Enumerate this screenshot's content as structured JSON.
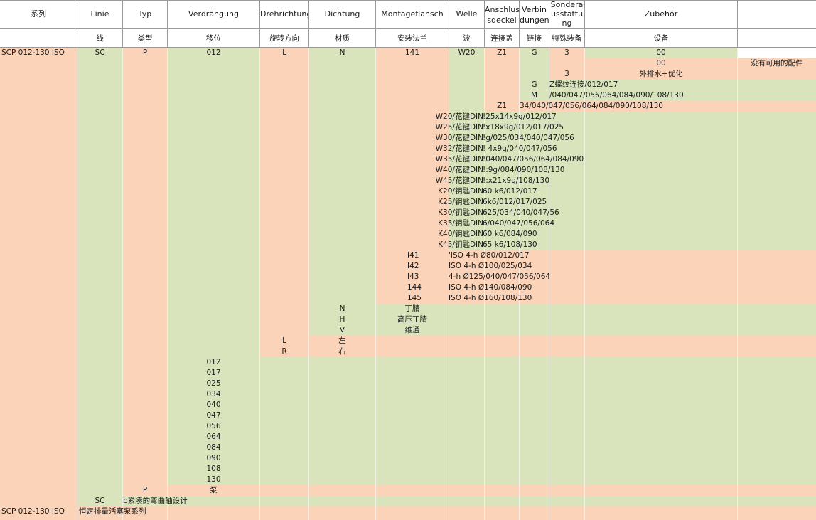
{
  "colors": {
    "salmon": "#fbd3b8",
    "green": "#d9e4bc",
    "white": "#ffffff",
    "grid": "#9a9a9a"
  },
  "header": {
    "row1": [
      "系列",
      "Linie",
      "Typ",
      "Verdrängung",
      "Drehrichtung",
      "Dichtung",
      "Montageflansch",
      "Welle",
      "Anschlus sdeckel",
      "Verbin dungen",
      "Sondera usstattu ng",
      "Zubehör",
      ""
    ],
    "row2": [
      "",
      "线",
      "类型",
      "移位",
      "旋转方向",
      "材质",
      "安装法兰",
      "波",
      "连接盖",
      "链接",
      "特殊装备",
      "设备",
      ""
    ]
  },
  "rows": {
    "main": {
      "series": "SCP 012-130 ISO",
      "linie": "SC",
      "typ": "P",
      "verdraengung": "012",
      "drehrichtung": "L",
      "dichtung": "N",
      "flansch": "141",
      "welle": "W20",
      "anschluss": "Z1",
      "verbindung": "G",
      "sonder": "3",
      "zubehoer": "00"
    },
    "zubehoer_opts": [
      {
        "code": "00",
        "desc": "没有可用的配件"
      }
    ],
    "sonder_opts": [
      {
        "code": "3",
        "desc": "外排水+优化"
      }
    ],
    "verbindung_opts": [
      {
        "code": "G",
        "desc": "Z螺纹连接/012/017"
      },
      {
        "code": "M",
        "desc": "/040/047/056/064/084/090/108/130"
      }
    ],
    "anschluss_opts": [
      {
        "code": "Z1",
        "desc": "34/040/047/056/064/084/090/108/130"
      }
    ],
    "welle_opts": [
      {
        "code": "W20/花键DIN",
        "desc": "!25x14x9g/012/017"
      },
      {
        "code": "W25/花键DIN",
        "desc": "!x18x9g/012/017/025"
      },
      {
        "code": "W30/花键DIN",
        "desc": "!g/025/034/040/047/056"
      },
      {
        "code": "W32/花键DIN",
        "desc": "! 4x9g/040/047/056"
      },
      {
        "code": "W35/花键DIN",
        "desc": "!040/047/056/064/084/090"
      },
      {
        "code": "W40/花键DIN",
        "desc": "!:9g/084/090/108/130"
      },
      {
        "code": "W45/花键DIN",
        "desc": "!:x21x9g/108/130"
      },
      {
        "code": "K20/钥匙DIN",
        "desc": "60 k6/012/017"
      },
      {
        "code": "K25/钥匙DIN",
        "desc": "6k6/012/017/025"
      },
      {
        "code": "K30/钥匙DIN",
        "desc": "625/034/040/047/56"
      },
      {
        "code": "K35/钥匙DIN",
        "desc": "6/040/047/056/064"
      },
      {
        "code": "K40/钥匙DIN",
        "desc": "60 k6/084/090"
      },
      {
        "code": "K45/钥匙DIN",
        "desc": "65 k6/108/130"
      }
    ],
    "flansch_opts": [
      {
        "code": "I41",
        "desc": "'ISO 4-h Ø80/012/017"
      },
      {
        "code": "I42",
        "desc": "ISO 4-h Ø100/025/034"
      },
      {
        "code": "I43",
        "desc": "4-h Ø125/040/047/056/064"
      },
      {
        "code": "144",
        "desc": "ISO 4-h Ø140/084/090"
      },
      {
        "code": "145",
        "desc": "ISO 4-h Ø160/108/130"
      }
    ],
    "dichtung_opts": [
      {
        "code": "N",
        "desc": "丁腈"
      },
      {
        "code": "H",
        "desc": "高压丁腈"
      },
      {
        "code": "V",
        "desc": "维通"
      }
    ],
    "dreh_opts": [
      {
        "code": "L",
        "desc": "左"
      },
      {
        "code": "R",
        "desc": "右"
      }
    ],
    "verdraengung_opts": [
      "012",
      "017",
      "025",
      "034",
      "040",
      "047",
      "056",
      "064",
      "084",
      "090",
      "108",
      "130"
    ],
    "typ_opt": {
      "code": "P",
      "desc": "泵"
    },
    "linie_opt": {
      "code": "SC",
      "desc": "b紧凑的弯曲轴设计"
    },
    "series_opt": {
      "code": "SCP 012-130 ISO",
      "desc": "恒定排量活塞泵系列"
    }
  }
}
